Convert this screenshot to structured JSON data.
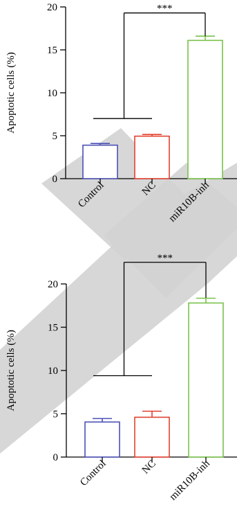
{
  "watermark": {
    "color": "#d3d3d3"
  },
  "chart_data": [
    {
      "type": "bar",
      "categories": [
        "Control",
        "NC",
        "miR10B-inh"
      ],
      "values": [
        3.9,
        4.95,
        16.1
      ],
      "errors": [
        0.2,
        0.2,
        0.5
      ],
      "colors": [
        "#4a4fb5",
        "#e2402e",
        "#79c24a"
      ],
      "ylabel": "Apoptotic cells (%)",
      "yticks": [
        "0",
        "5",
        "10",
        "15",
        "20"
      ],
      "ylim": [
        0,
        20
      ],
      "significance": "***",
      "bracket_left_level": 7.0,
      "bracket_top_level": 19.3,
      "bracket_right_level": 16.6
    },
    {
      "type": "bar",
      "categories": [
        "Control",
        "NC",
        "miR10B-inh"
      ],
      "values": [
        4.05,
        4.6,
        17.8
      ],
      "errors": [
        0.4,
        0.7,
        0.55
      ],
      "colors": [
        "#4a4fb5",
        "#e2402e",
        "#79c24a"
      ],
      "ylabel": "Apoptotic cells (%)",
      "yticks": [
        "0",
        "5",
        "10",
        "15",
        "20"
      ],
      "ylim": [
        0,
        20
      ],
      "significance": "***",
      "bracket_left_level": 9.4,
      "bracket_top_level": 22.5,
      "bracket_right_level": 18.4
    }
  ]
}
